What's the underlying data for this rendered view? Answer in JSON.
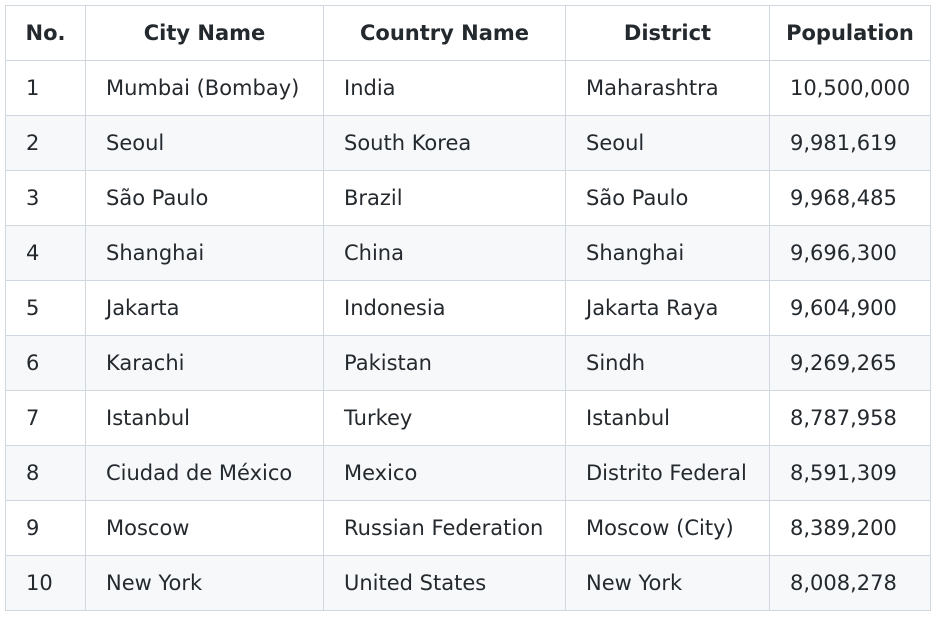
{
  "table": {
    "headers": [
      "No.",
      "City Name",
      "Country Name",
      "District",
      "Population"
    ],
    "rows": [
      [
        "1",
        "Mumbai (Bombay)",
        "India",
        "Maharashtra",
        "10,500,000"
      ],
      [
        "2",
        "Seoul",
        "South Korea",
        "Seoul",
        "9,981,619"
      ],
      [
        "3",
        "São Paulo",
        "Brazil",
        "São Paulo",
        "9,968,485"
      ],
      [
        "4",
        "Shanghai",
        "China",
        "Shanghai",
        "9,696,300"
      ],
      [
        "5",
        "Jakarta",
        "Indonesia",
        "Jakarta Raya",
        "9,604,900"
      ],
      [
        "6",
        "Karachi",
        "Pakistan",
        "Sindh",
        "9,269,265"
      ],
      [
        "7",
        "Istanbul",
        "Turkey",
        "Istanbul",
        "8,787,958"
      ],
      [
        "8",
        "Ciudad de México",
        "Mexico",
        "Distrito Federal",
        "8,591,309"
      ],
      [
        "9",
        "Moscow",
        "Russian Federation",
        "Moscow (City)",
        "8,389,200"
      ],
      [
        "10",
        "New York",
        "United States",
        "New York",
        "8,008,278"
      ]
    ]
  },
  "colors": {
    "border": "#d0d7de",
    "stripe": "#f6f8fa",
    "text": "#24292e"
  }
}
